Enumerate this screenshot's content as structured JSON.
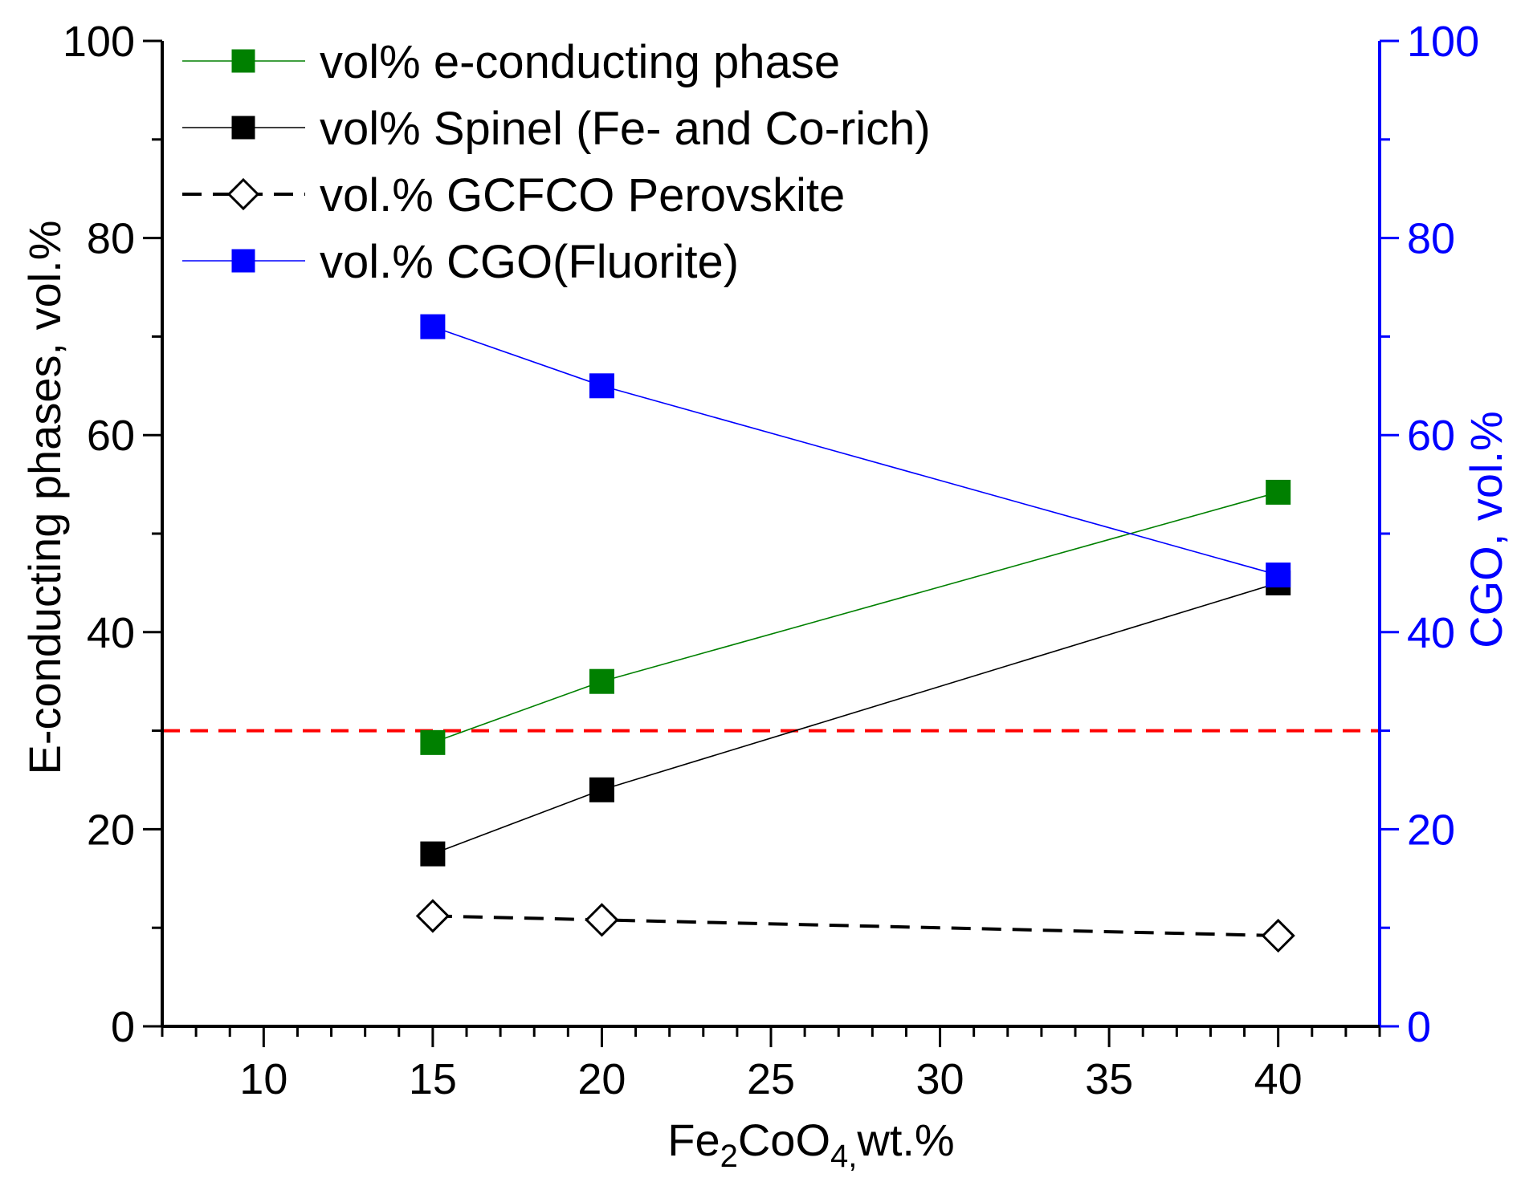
{
  "chart_data": {
    "type": "line",
    "x_axis": {
      "label_main": "Fe",
      "label_sub1": "2",
      "label_mid": "CoO",
      "label_sub2": "4,",
      "label_tail": "wt.%",
      "range": [
        7,
        43
      ],
      "ticks": [
        10,
        15,
        20,
        25,
        30,
        35,
        40
      ],
      "tick_labels": [
        "10",
        "15",
        "20",
        "25",
        "30",
        "35",
        "40"
      ]
    },
    "y_axis_left": {
      "label": "E-conducting phases, vol.%",
      "range": [
        0,
        100
      ],
      "ticks": [
        0,
        20,
        40,
        60,
        80,
        100
      ],
      "tick_labels": [
        "0",
        "20",
        "40",
        "60",
        "80",
        "100"
      ],
      "color": "#000000"
    },
    "y_axis_right": {
      "label": "CGO, vol.%",
      "range": [
        0,
        100
      ],
      "ticks": [
        0,
        20,
        40,
        60,
        80,
        100
      ],
      "tick_labels": [
        "0",
        "20",
        "40",
        "60",
        "80",
        "100"
      ],
      "color": "#0000ff"
    },
    "reference_line": {
      "y": 30,
      "color": "#ff0000",
      "style": "dashed"
    },
    "series": [
      {
        "name": "vol% e-conducting phase",
        "axis": "left",
        "color": "#008000",
        "marker": "square-filled",
        "line": "solid",
        "x": [
          15,
          20,
          40
        ],
        "y": [
          28.8,
          35,
          54.2
        ]
      },
      {
        "name": "vol% Spinel (Fe- and Co-rich)",
        "axis": "left",
        "color": "#000000",
        "marker": "square-filled",
        "line": "solid",
        "x": [
          15,
          20,
          40
        ],
        "y": [
          17.5,
          24,
          45
        ]
      },
      {
        "name": "vol.% GCFCO Perovskite",
        "axis": "left",
        "color": "#000000",
        "marker": "diamond-open",
        "line": "dashed",
        "x": [
          15,
          20,
          40
        ],
        "y": [
          11.2,
          10.8,
          9.2
        ]
      },
      {
        "name": "vol.% CGO(Fluorite)",
        "axis": "right",
        "color": "#0000ff",
        "marker": "square-filled",
        "line": "solid",
        "x": [
          15,
          20,
          40
        ],
        "y": [
          71,
          65,
          45.8
        ]
      }
    ],
    "legend": {
      "position": "top-left"
    }
  }
}
